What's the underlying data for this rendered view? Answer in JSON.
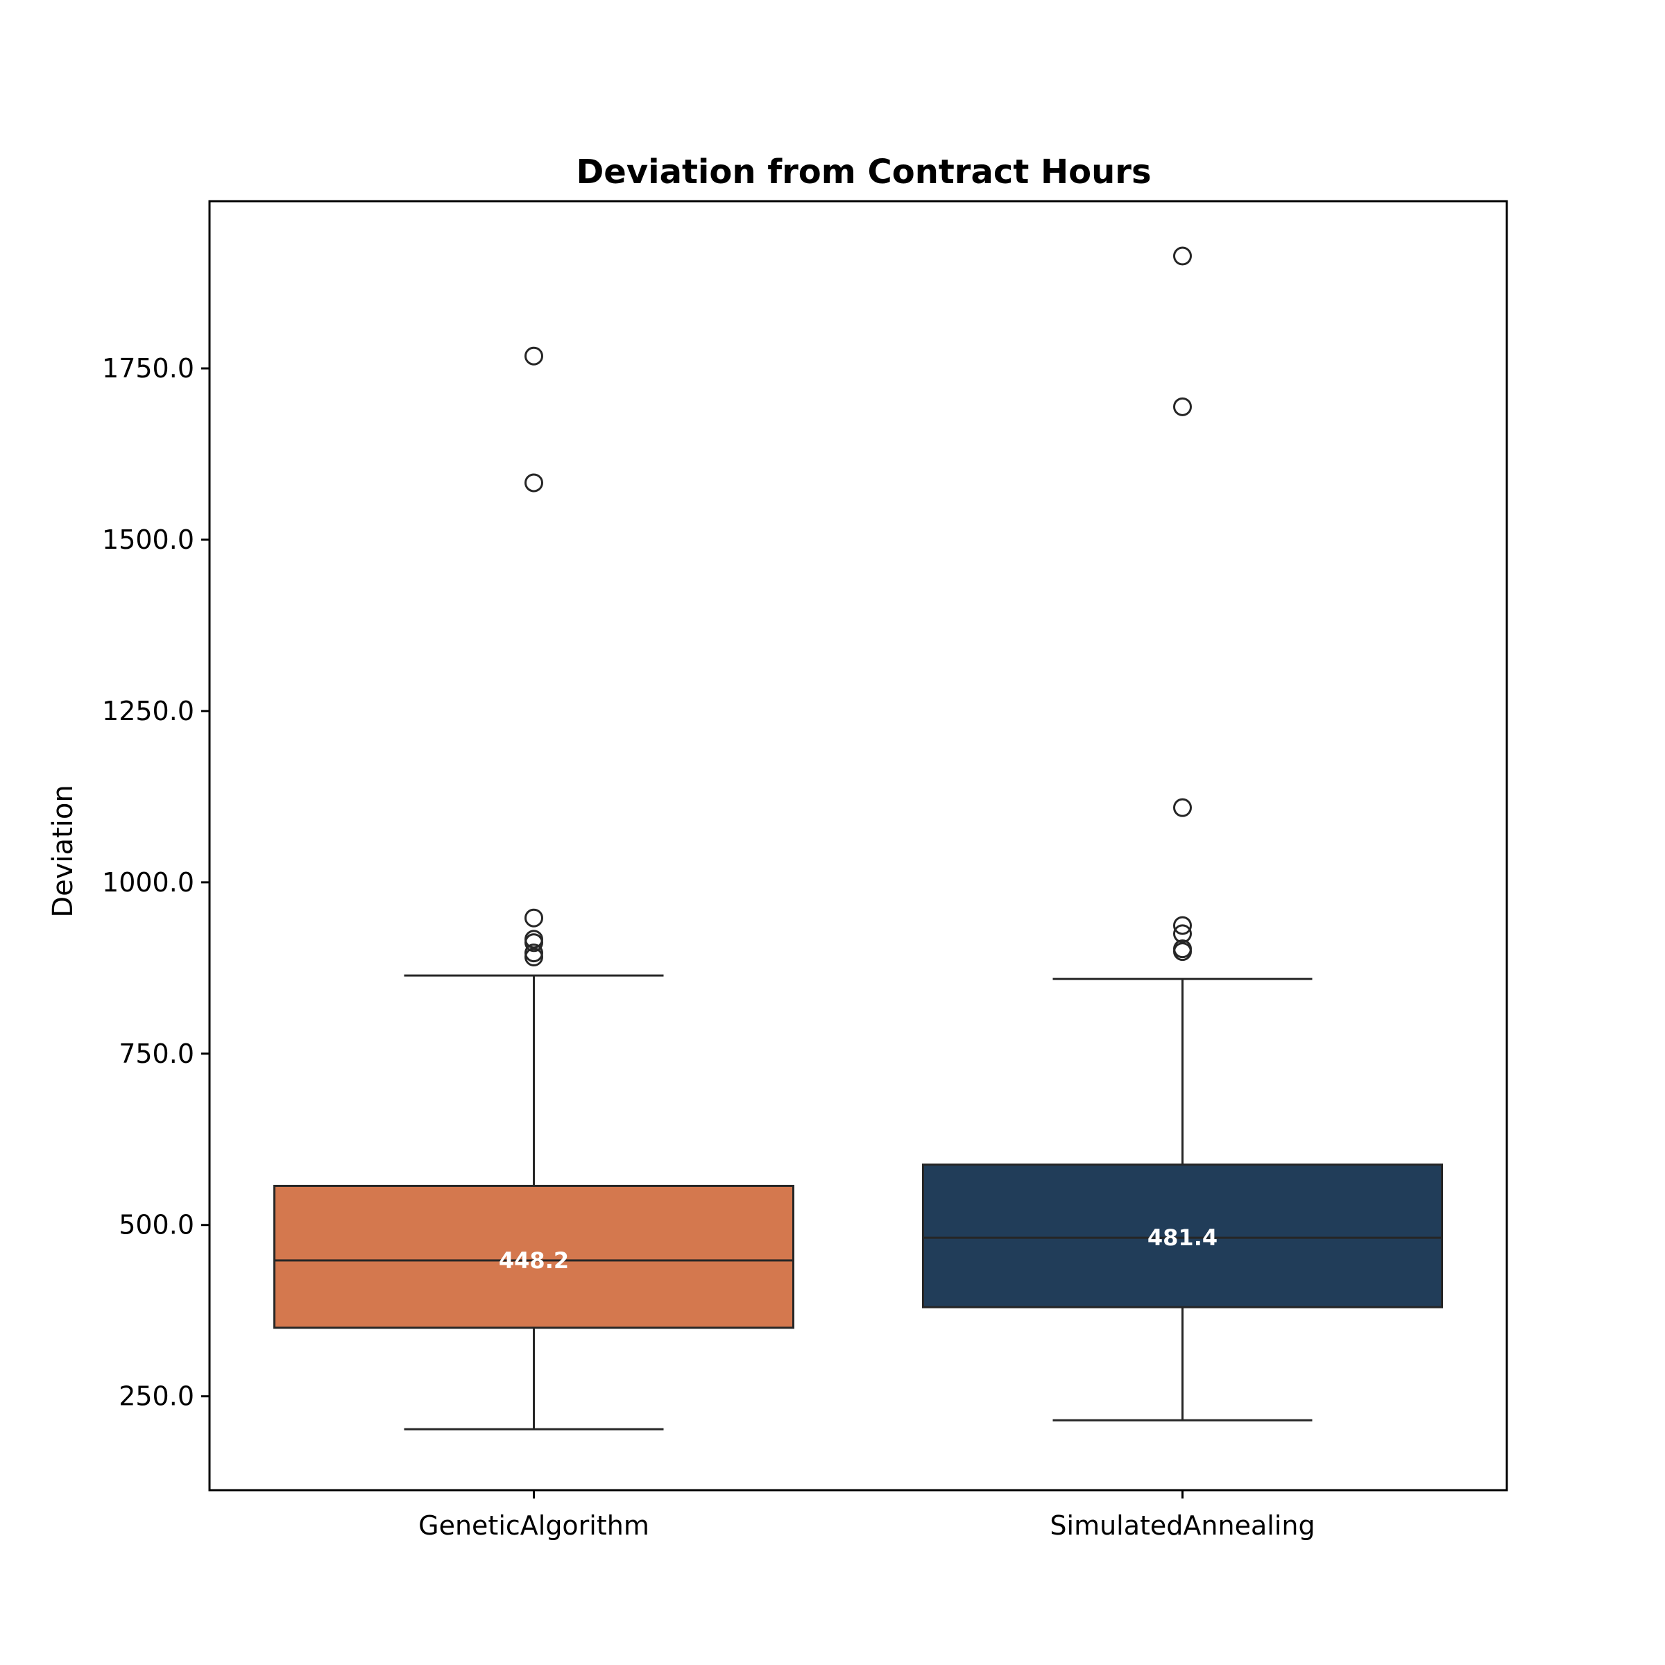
{
  "chart_data": {
    "type": "box",
    "title": "Deviation from Contract Hours",
    "xlabel": "",
    "ylabel": "Deviation",
    "ylim": [
      113,
      1994
    ],
    "yticks": [
      250.0,
      500.0,
      750.0,
      1000.0,
      1250.0,
      1500.0,
      1750.0
    ],
    "ytick_labels": [
      "250.0",
      "500.0",
      "750.0",
      "1000.0",
      "1250.0",
      "1500.0",
      "1750.0"
    ],
    "grid": false,
    "categories": [
      "GeneticAlgorithm",
      "SimulatedAnnealing"
    ],
    "boxes": [
      {
        "category": "GeneticAlgorithm",
        "color": "#D4784E",
        "whisker_low": 202,
        "q1": 350,
        "median": 448.2,
        "q3": 557,
        "whisker_high": 864,
        "median_label": "448.2",
        "outliers": [
          891,
          897,
          912,
          917,
          948,
          1583,
          1768
        ]
      },
      {
        "category": "SimulatedAnnealing",
        "color": "#213D59",
        "whisker_low": 215,
        "q1": 380,
        "median": 481.4,
        "q3": 588,
        "whisker_high": 859,
        "median_label": "481.4",
        "outliers": [
          899,
          903,
          925,
          937,
          1109,
          1694,
          1914
        ]
      }
    ]
  }
}
